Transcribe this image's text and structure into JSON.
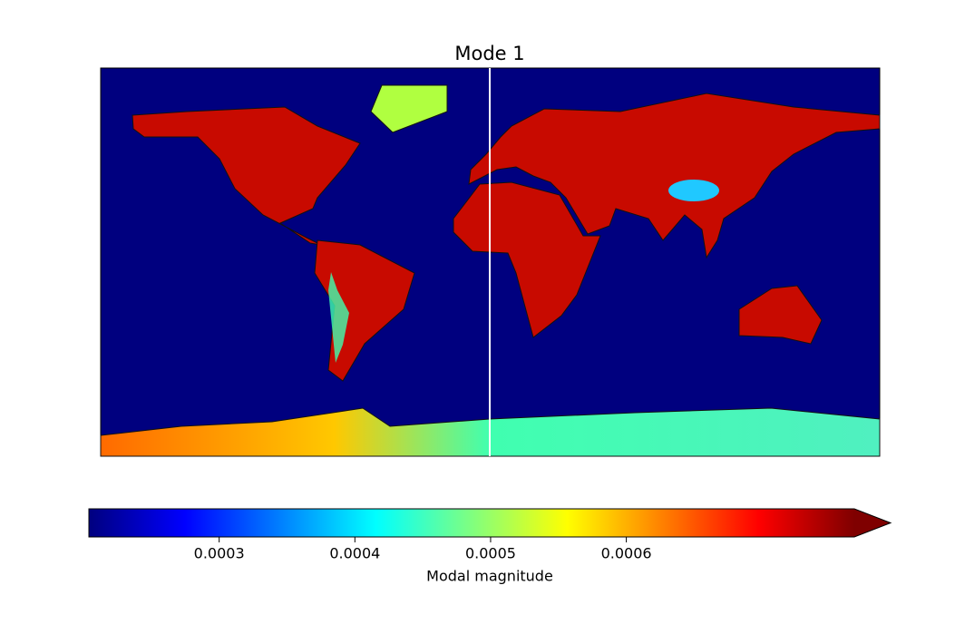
{
  "map": {
    "title": "Mode 1",
    "colorbar": {
      "label": "Modal magnitude",
      "lim": [
        0.000204,
        0.000768
      ],
      "ticks": [
        0.0003,
        0.0004,
        0.0005,
        0.0006
      ],
      "colormap": "jet",
      "extend": "max"
    }
  }
}
